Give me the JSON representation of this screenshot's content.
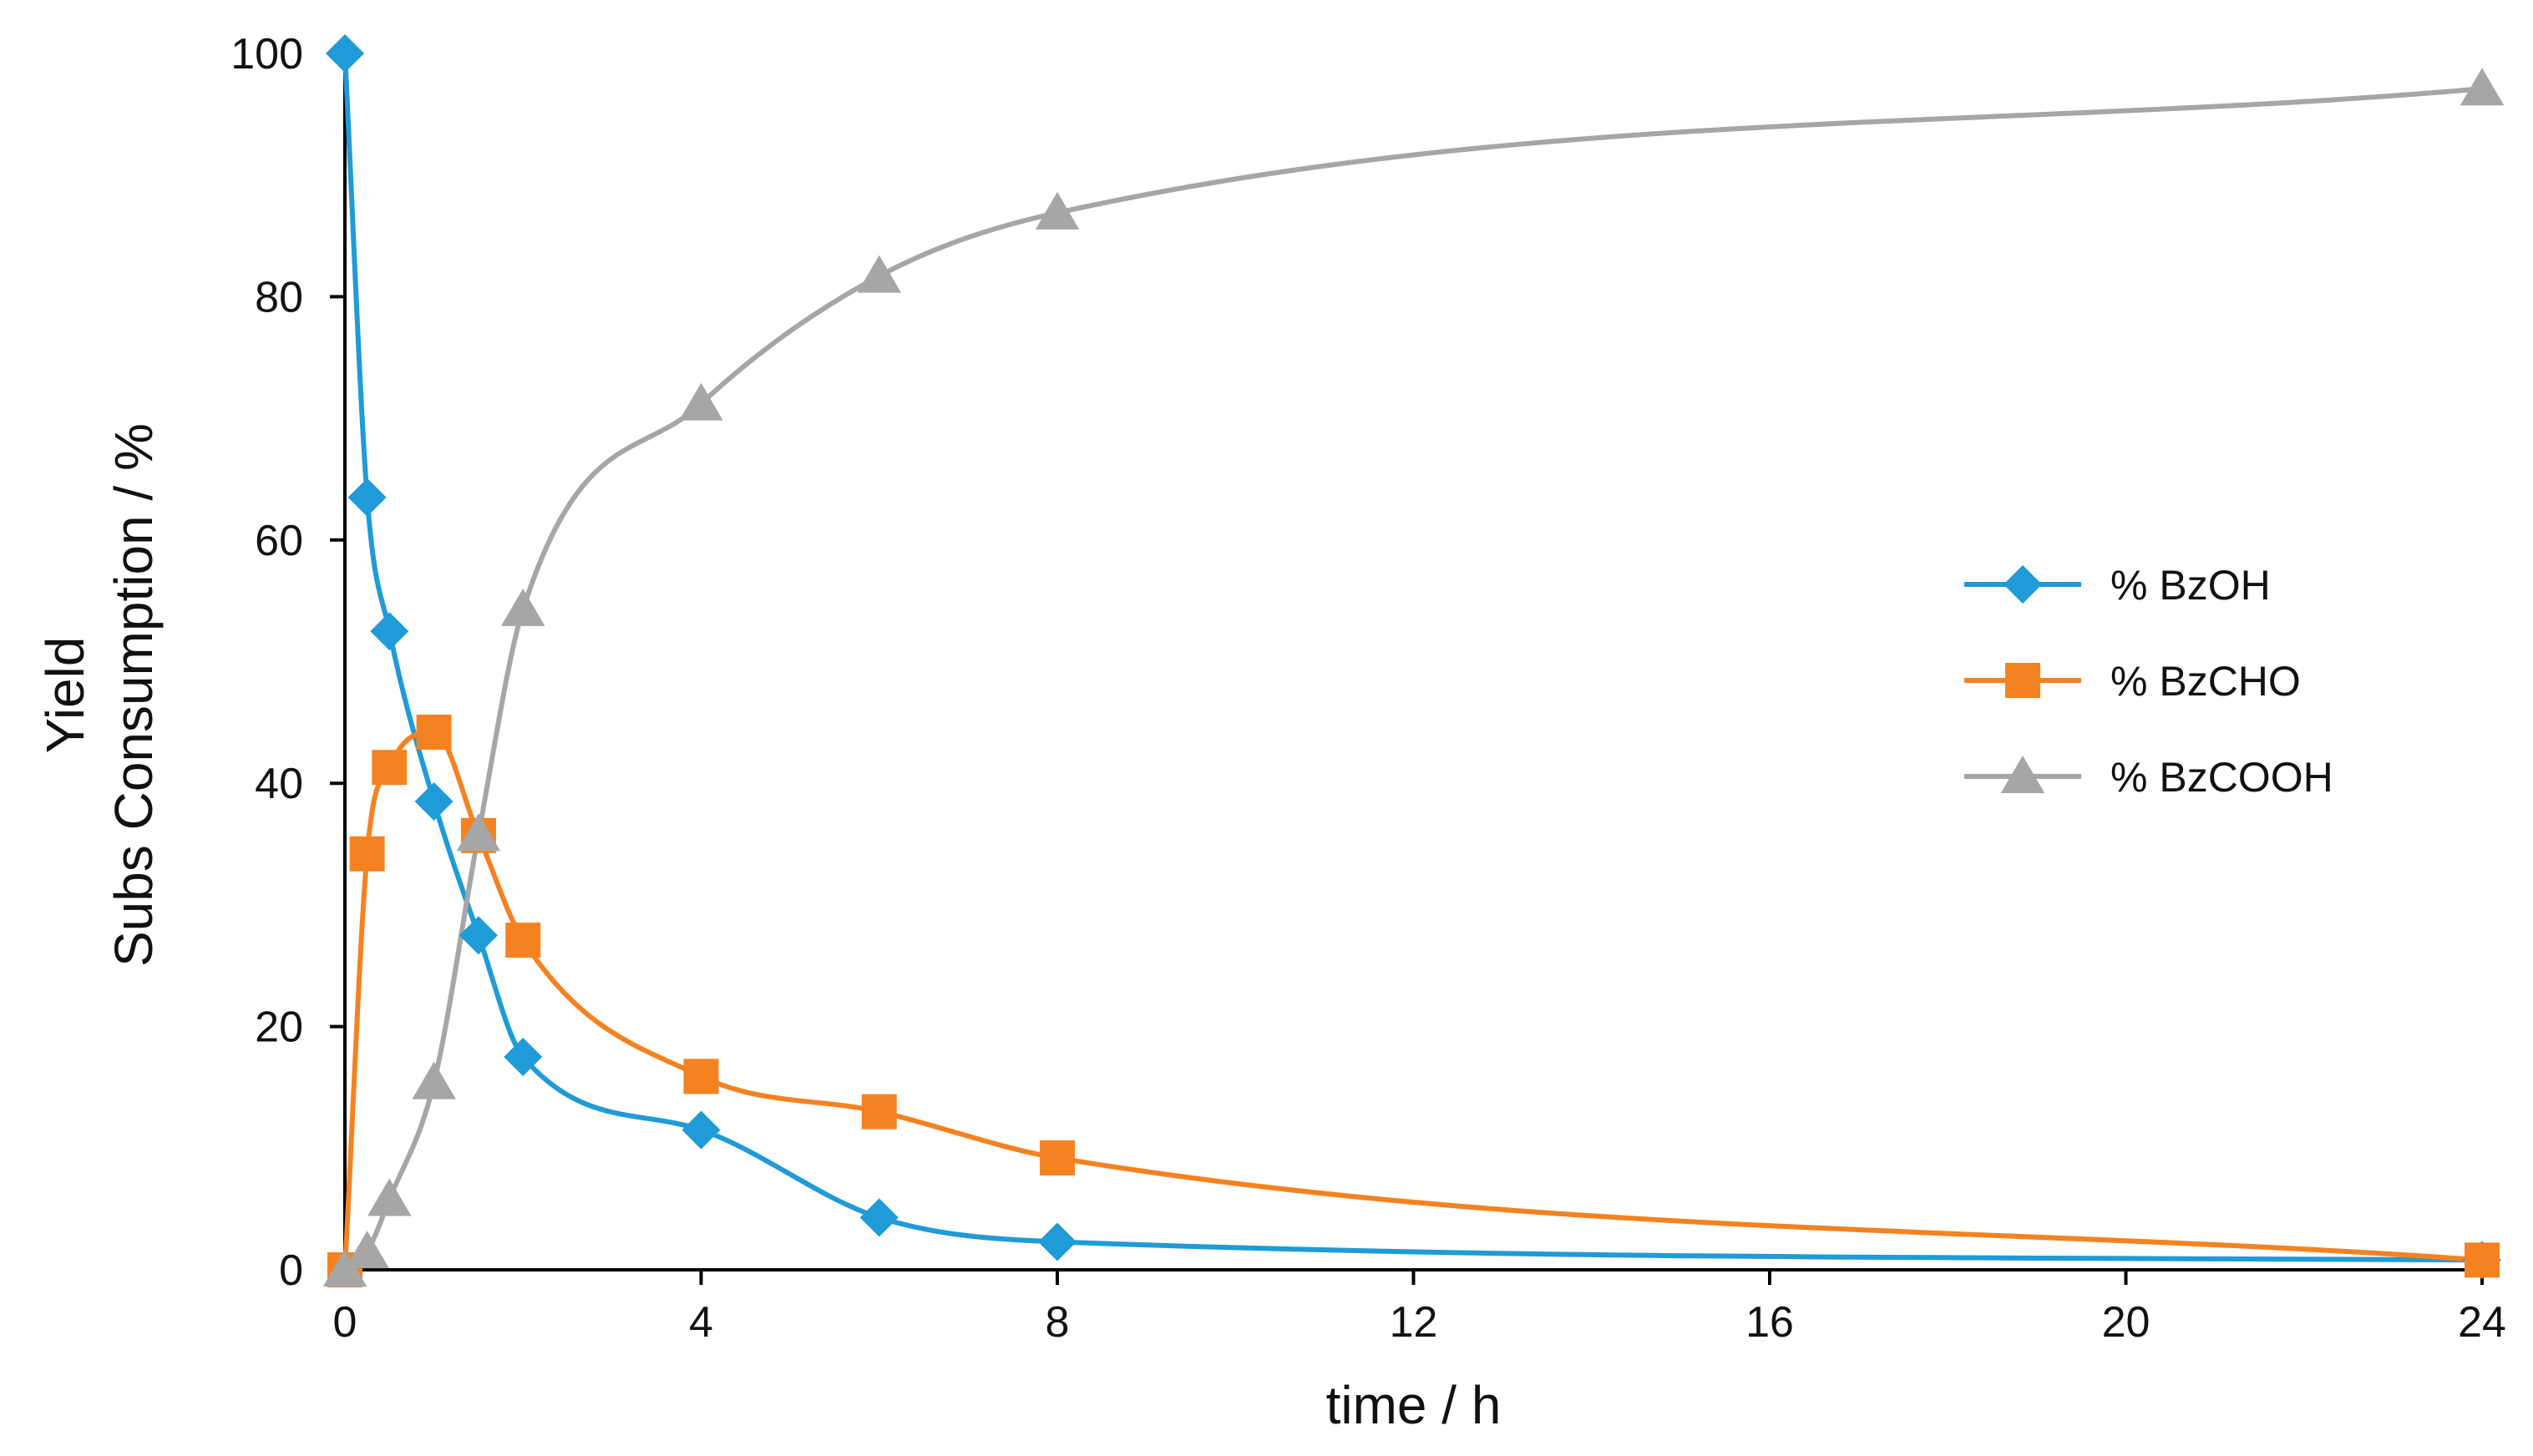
{
  "chart_data": {
    "type": "line",
    "xlabel": "time / h",
    "ylabel_lines": [
      "Yield",
      "Subs Consumption / %"
    ],
    "xlim": [
      0,
      24
    ],
    "ylim": [
      0,
      100
    ],
    "x_ticks": [
      0,
      4,
      8,
      12,
      16,
      20,
      24
    ],
    "y_ticks": [
      0,
      20,
      40,
      60,
      80,
      100
    ],
    "grid": false,
    "smooth": true,
    "legend_position": "right",
    "series": [
      {
        "name": "% BzOH",
        "color": "#1f9bd7",
        "marker": "diamond",
        "x": [
          0,
          0.25,
          0.5,
          1,
          1.5,
          2,
          4,
          6,
          8,
          24
        ],
        "y": [
          100,
          63.5,
          52.5,
          38.5,
          27.5,
          17.5,
          11.5,
          4.3,
          2.3,
          0.8
        ]
      },
      {
        "name": "% BzCHO",
        "color": "#f58220",
        "marker": "square",
        "x": [
          0,
          0.25,
          0.5,
          1,
          1.5,
          2,
          4,
          6,
          8,
          24
        ],
        "y": [
          0,
          34.2,
          41.3,
          44.2,
          35.7,
          27.1,
          15.9,
          13.0,
          9.2,
          0.8
        ]
      },
      {
        "name": "% BzCOOH",
        "color": "#a6a6a6",
        "marker": "triangle",
        "x": [
          0,
          0.25,
          0.5,
          1,
          1.5,
          2,
          4,
          6,
          8,
          24
        ],
        "y": [
          0,
          1.5,
          5.8,
          15.4,
          35.8,
          54.3,
          71.2,
          81.7,
          86.9,
          97.1
        ]
      }
    ]
  }
}
